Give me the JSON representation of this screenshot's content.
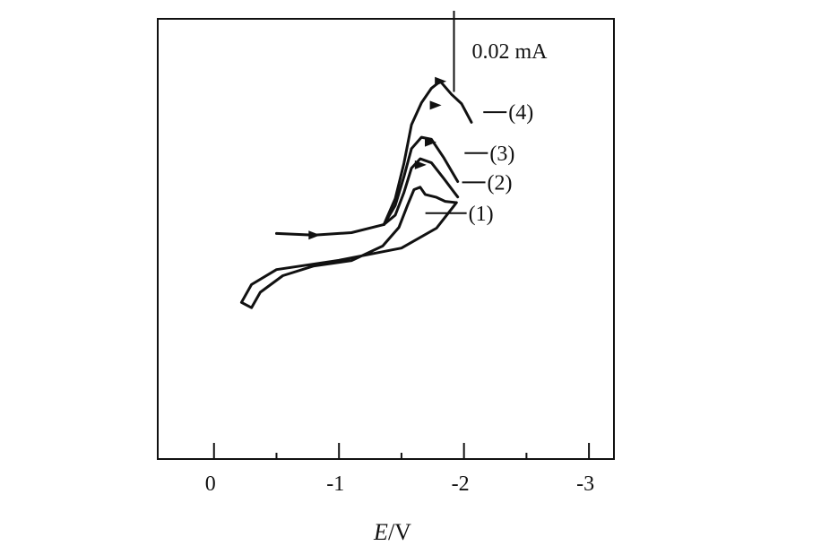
{
  "chart_data": {
    "type": "line",
    "title": "",
    "xlabel_italic": "E",
    "xlabel_rest": "/V",
    "x_ticks": [
      {
        "value": 0,
        "label": "0"
      },
      {
        "value": -1,
        "label": "-1"
      },
      {
        "value": -2,
        "label": "-2"
      },
      {
        "value": -3,
        "label": "-3"
      }
    ],
    "x_minor_ticks": [
      -0.5,
      -1.5,
      -2.5
    ],
    "xlim": [
      0.45,
      -3.2
    ],
    "ylim": [
      -0.0733,
      0.0352
    ],
    "scale_bar": {
      "label": "0.02 mA",
      "value": 0.02,
      "x": -1.92,
      "y_start": 0.0172
    },
    "series": [
      {
        "name": "(1)",
        "label_x": -2.05,
        "label_y": -0.0127,
        "points": [
          [
            -1.94,
            -0.0101
          ],
          [
            -1.78,
            -0.0164
          ],
          [
            -1.5,
            -0.0213
          ],
          [
            -1.0,
            -0.0243
          ],
          [
            -0.5,
            -0.0266
          ],
          [
            -0.3,
            -0.0303
          ],
          [
            -0.22,
            -0.0347
          ],
          [
            -0.3,
            -0.036
          ],
          [
            -0.37,
            -0.0322
          ],
          [
            -0.55,
            -0.0281
          ],
          [
            -0.8,
            -0.0257
          ],
          [
            -1.1,
            -0.0244
          ],
          [
            -1.35,
            -0.0208
          ],
          [
            -1.48,
            -0.0162
          ],
          [
            -1.55,
            -0.0106
          ],
          [
            -1.6,
            -0.0069
          ],
          [
            -1.65,
            -0.0063
          ],
          [
            -1.69,
            -0.0081
          ],
          [
            -1.78,
            -0.0088
          ],
          [
            -1.85,
            -0.0098
          ],
          [
            -1.94,
            -0.0101
          ]
        ]
      },
      {
        "name": "(2)",
        "label_x": -2.2,
        "label_y": -0.0051,
        "points": [
          [
            -1.36,
            -0.0155
          ],
          [
            -1.45,
            -0.0132
          ],
          [
            -1.52,
            -0.0076
          ],
          [
            -1.58,
            -0.0016
          ],
          [
            -1.65,
            0.0007
          ],
          [
            -1.74,
            -0.0003
          ],
          [
            -1.84,
            -0.0042
          ],
          [
            -1.95,
            -0.0087
          ]
        ]
      },
      {
        "name": "(3)",
        "label_x": -2.22,
        "label_y": 0.0021,
        "points": [
          [
            -1.36,
            -0.0155
          ],
          [
            -1.45,
            -0.0108
          ],
          [
            -1.52,
            -0.0037
          ],
          [
            -1.58,
            0.0032
          ],
          [
            -1.66,
            0.006
          ],
          [
            -1.74,
            0.0055
          ],
          [
            -1.84,
            0.0009
          ],
          [
            -1.95,
            -0.0049
          ]
        ]
      },
      {
        "name": "(4)",
        "label_x": -2.37,
        "label_y": 0.0122,
        "points": [
          [
            -1.36,
            -0.0155
          ],
          [
            -1.45,
            -0.0091
          ],
          [
            -1.52,
            -0.0004
          ],
          [
            -1.58,
            0.0091
          ],
          [
            -1.66,
            0.0145
          ],
          [
            -1.74,
            0.0181
          ],
          [
            -1.81,
            0.0198
          ],
          [
            -1.9,
            0.0166
          ],
          [
            -1.98,
            0.0143
          ],
          [
            -2.06,
            0.0097
          ]
        ]
      }
    ],
    "shared_branch": [
      [
        -0.5,
        -0.0177
      ],
      [
        -0.8,
        -0.0181
      ],
      [
        -1.1,
        -0.0175
      ],
      [
        -1.36,
        -0.0155
      ]
    ],
    "arrow_points": [
      [
        -0.8,
        -0.0181
      ],
      [
        -1.65,
        -0.0008
      ],
      [
        -1.73,
        0.0048
      ],
      [
        -1.77,
        0.0139
      ],
      [
        -1.81,
        0.0198
      ]
    ]
  }
}
